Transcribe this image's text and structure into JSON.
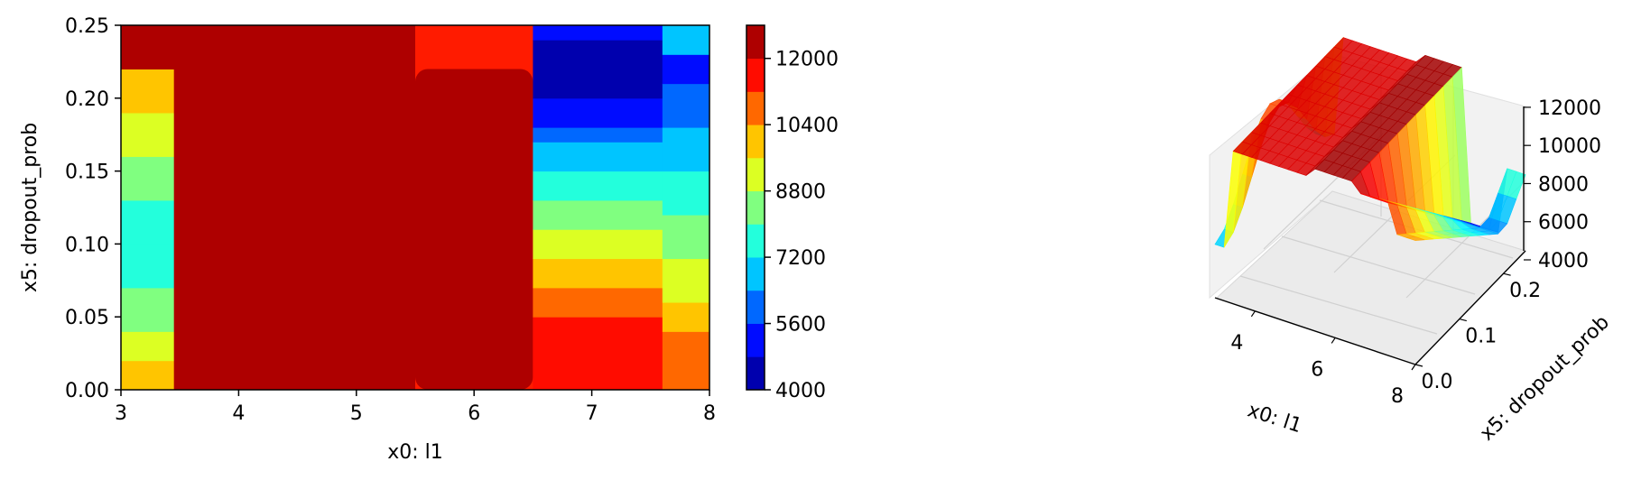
{
  "chart_data": [
    {
      "type": "contour",
      "xlabel": "x0: l1",
      "ylabel": "x5: dropout_prob",
      "xlim": [
        3,
        8
      ],
      "ylim": [
        0,
        0.25
      ],
      "xticks": [
        "3",
        "4",
        "5",
        "6",
        "7",
        "8"
      ],
      "yticks": [
        "0.00",
        "0.05",
        "0.10",
        "0.15",
        "0.20",
        "0.25"
      ],
      "colormap": "jet",
      "colorbar": {
        "range": [
          4000,
          12800
        ],
        "levels": [
          4000,
          4800,
          5600,
          6400,
          7200,
          8000,
          8800,
          9600,
          10400,
          11200,
          12000,
          12800
        ],
        "ticks": [
          "4000",
          "5600",
          "7200",
          "8800",
          "10400",
          "12000"
        ]
      },
      "regions": [
        {
          "x": [
            3.0,
            3.45
          ],
          "value_at_y": [
            [
              0.0,
              10000
            ],
            [
              0.02,
              9300
            ],
            [
              0.04,
              8500
            ],
            [
              0.07,
              7600
            ],
            [
              0.1,
              7600
            ],
            [
              0.13,
              8500
            ],
            [
              0.16,
              9300
            ],
            [
              0.19,
              10000
            ],
            [
              0.22,
              12000
            ]
          ]
        },
        {
          "x": [
            3.45,
            5.5
          ],
          "value": 12000
        },
        {
          "x": [
            5.5,
            6.5
          ],
          "value": 12500,
          "y_max": 0.22
        },
        {
          "x": [
            6.5,
            7.6
          ],
          "value_at_y": [
            [
              0.0,
              11600
            ],
            [
              0.05,
              10800
            ],
            [
              0.07,
              10000
            ],
            [
              0.09,
              9300
            ],
            [
              0.11,
              8500
            ],
            [
              0.13,
              7600
            ],
            [
              0.15,
              6800
            ],
            [
              0.17,
              5900
            ],
            [
              0.18,
              5100
            ],
            [
              0.2,
              4400
            ],
            [
              0.24,
              5100
            ]
          ]
        },
        {
          "x": [
            7.6,
            8.0
          ],
          "value_at_y": [
            [
              0.0,
              10800
            ],
            [
              0.04,
              10000
            ],
            [
              0.06,
              9300
            ],
            [
              0.09,
              8500
            ],
            [
              0.12,
              7600
            ],
            [
              0.15,
              6800
            ],
            [
              0.18,
              5900
            ],
            [
              0.21,
              5100
            ],
            [
              0.23,
              6800
            ],
            [
              0.25,
              7600
            ]
          ]
        }
      ]
    },
    {
      "type": "surface3d",
      "xlabel": "x0: l1",
      "ylabel": "x5: dropout_prob",
      "xticks": [
        "4",
        "6",
        "8"
      ],
      "yticks": [
        "0.0",
        "0.1",
        "0.2"
      ],
      "zticks": [
        "4000",
        "6000",
        "8000",
        "10000",
        "12000"
      ],
      "zlim": [
        4000,
        12800
      ],
      "colormap": "jet"
    }
  ]
}
